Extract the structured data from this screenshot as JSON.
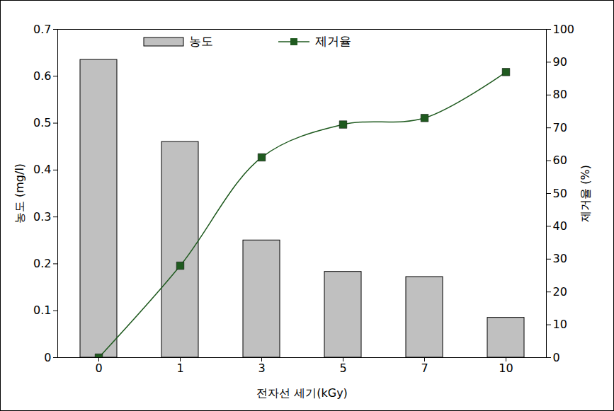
{
  "chart_data": {
    "type": "bar",
    "categories": [
      "0",
      "1",
      "3",
      "5",
      "7",
      "10"
    ],
    "x_label": "전자선 세기(kGy)",
    "y_label": "농도 (mg/l)",
    "y2_label": "제거율 (%)",
    "ylim": [
      0,
      0.7
    ],
    "yticks": [
      0,
      0.1,
      0.2,
      0.3,
      0.4,
      0.5,
      0.6,
      0.7
    ],
    "y2lim": [
      0,
      100
    ],
    "y2ticks": [
      0,
      10,
      20,
      30,
      40,
      50,
      60,
      70,
      80,
      90,
      100
    ],
    "legend": "top",
    "series": [
      {
        "name": "농도",
        "type": "bar",
        "color": "#c0c0c0",
        "values": [
          0.635,
          0.46,
          0.25,
          0.183,
          0.172,
          0.085
        ]
      },
      {
        "name": "제거율",
        "type": "line",
        "axis": "y2",
        "color": "#1f5a1f",
        "marker": "square",
        "line_style": "smooth",
        "values": [
          0,
          28,
          61,
          71,
          73,
          87
        ]
      }
    ]
  }
}
